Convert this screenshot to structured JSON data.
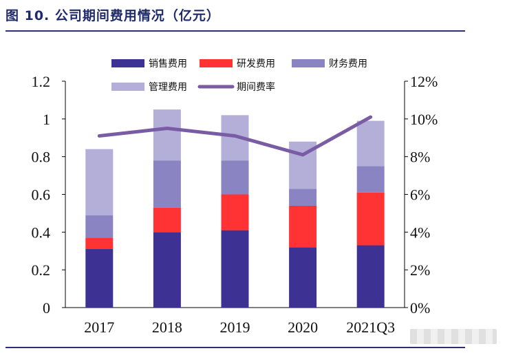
{
  "title": "图 10. 公司期间费用情况（亿元）",
  "colors": {
    "sales": "#3e3194",
    "rnd": "#ff3333",
    "finance": "#8b84c3",
    "admin": "#b3afd9",
    "ratio": "#7a5ca4",
    "rule": "#2b2f7a"
  },
  "chart_data": {
    "type": "bar",
    "stacked": true,
    "categories": [
      "2017",
      "2018",
      "2019",
      "2020",
      "2021Q3"
    ],
    "series": [
      {
        "name": "销售费用",
        "values": [
          0.31,
          0.4,
          0.41,
          0.32,
          0.33
        ]
      },
      {
        "name": "研发费用",
        "values": [
          0.06,
          0.13,
          0.19,
          0.22,
          0.28
        ]
      },
      {
        "name": "财务费用",
        "values": [
          0.12,
          0.25,
          0.18,
          0.09,
          0.14
        ]
      },
      {
        "name": "管理费用",
        "values": [
          0.35,
          0.27,
          0.24,
          0.25,
          0.24
        ]
      }
    ],
    "line_series": {
      "name": "期间费率",
      "axis": "right",
      "values": [
        9.1,
        9.5,
        9.1,
        8.1,
        10.1
      ]
    },
    "y_left": {
      "min": 0,
      "max": 1.2,
      "ticks": [
        "0",
        "0.2",
        "0.4",
        "0.6",
        "0.8",
        "1",
        "1.2"
      ]
    },
    "y_right": {
      "min": 0,
      "max": 12,
      "ticks": [
        "0%",
        "2%",
        "4%",
        "6%",
        "8%",
        "10%",
        "12%"
      ]
    },
    "legend_position": "top"
  }
}
